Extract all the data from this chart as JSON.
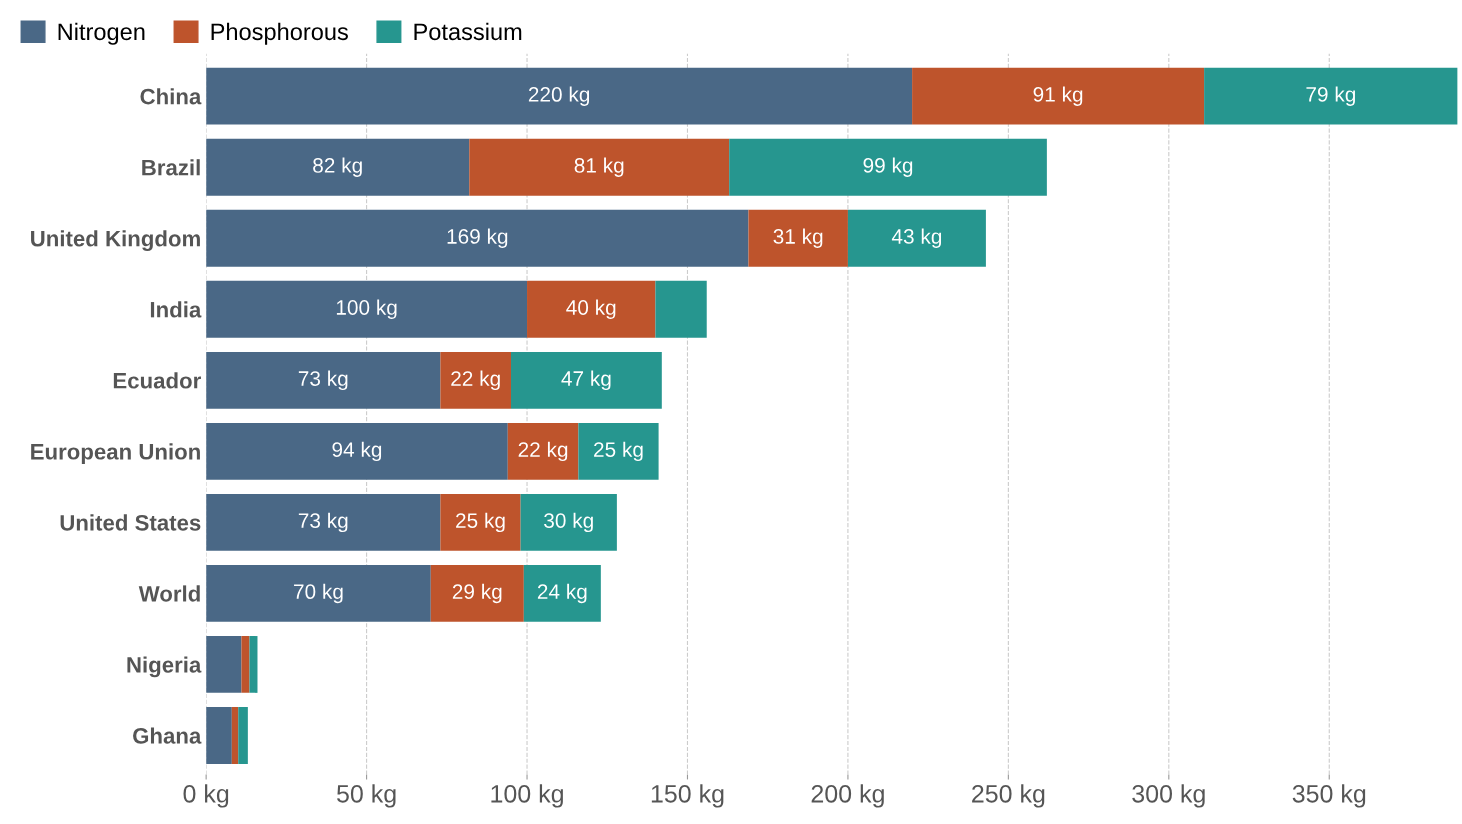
{
  "chart_data": {
    "type": "bar",
    "orientation": "horizontal",
    "stacked": true,
    "categories": [
      "China",
      "Brazil",
      "United Kingdom",
      "India",
      "Ecuador",
      "European Union",
      "United States",
      "World",
      "Nigeria",
      "Ghana"
    ],
    "series": [
      {
        "name": "Nitrogen",
        "color": "#4a6886",
        "values": [
          220,
          82,
          169,
          100,
          73,
          94,
          73,
          70,
          11,
          8
        ],
        "value_labels": [
          "220 kg",
          "82 kg",
          "169 kg",
          "100 kg",
          "73 kg",
          "94 kg",
          "73 kg",
          "70 kg",
          null,
          null
        ]
      },
      {
        "name": "Phosphorous",
        "color": "#be542c",
        "values": [
          91,
          81,
          31,
          40,
          22,
          22,
          25,
          29,
          2.5,
          2
        ],
        "value_labels": [
          "91 kg",
          "81 kg",
          "31 kg",
          "40 kg",
          "22 kg",
          "22 kg",
          "25 kg",
          "29 kg",
          null,
          null
        ]
      },
      {
        "name": "Potassium",
        "color": "#26968f",
        "values": [
          79,
          99,
          43,
          16,
          47,
          25,
          30,
          24,
          2.5,
          3
        ],
        "value_labels": [
          "79 kg",
          "99 kg",
          "43 kg",
          null,
          "47 kg",
          "25 kg",
          "30 kg",
          "24 kg",
          null,
          null
        ]
      }
    ],
    "xlim": [
      0,
      390
    ],
    "xticks": [
      {
        "value": 0,
        "label": "0 kg"
      },
      {
        "value": 50,
        "label": "50 kg"
      },
      {
        "value": 100,
        "label": "100 kg"
      },
      {
        "value": 150,
        "label": "150 kg"
      },
      {
        "value": 200,
        "label": "200 kg"
      },
      {
        "value": 250,
        "label": "250 kg"
      },
      {
        "value": 300,
        "label": "300 kg"
      },
      {
        "value": 350,
        "label": "350 kg"
      }
    ],
    "grid": "x",
    "legend": "top left"
  }
}
